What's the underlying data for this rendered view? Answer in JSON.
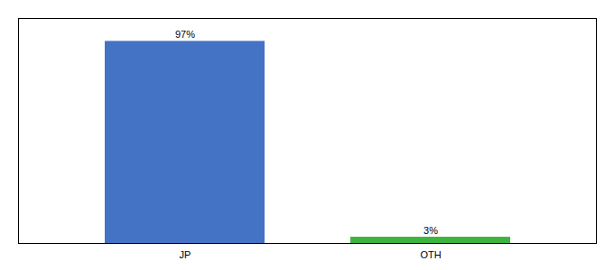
{
  "chart_data": {
    "type": "bar",
    "categories": [
      "JP",
      "OTH"
    ],
    "values": [
      97,
      3
    ],
    "value_labels": [
      "97%",
      "3%"
    ],
    "colors": [
      "#4472c4",
      "#3db53d"
    ],
    "ylim": [
      0,
      108
    ],
    "data_labels": true,
    "tick_labels": "x"
  }
}
